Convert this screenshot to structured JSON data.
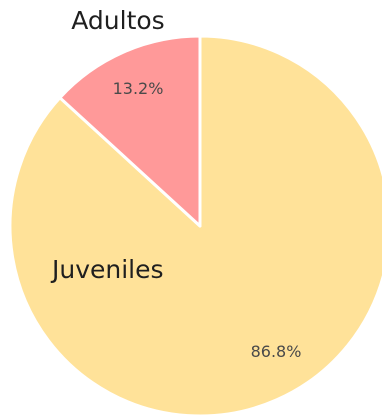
{
  "chart_data": {
    "type": "pie",
    "title": "",
    "start_angle_deg": 0,
    "direction": "clockwise",
    "slices": [
      {
        "label": "Juveniles",
        "value": 86.8,
        "value_label": "86.8%",
        "color": "#FFE299"
      },
      {
        "label": "Adultos",
        "value": 13.2,
        "value_label": "13.2%",
        "color": "#FF9999"
      }
    ],
    "slice_border_color": "#ffffff",
    "legend": "none"
  }
}
